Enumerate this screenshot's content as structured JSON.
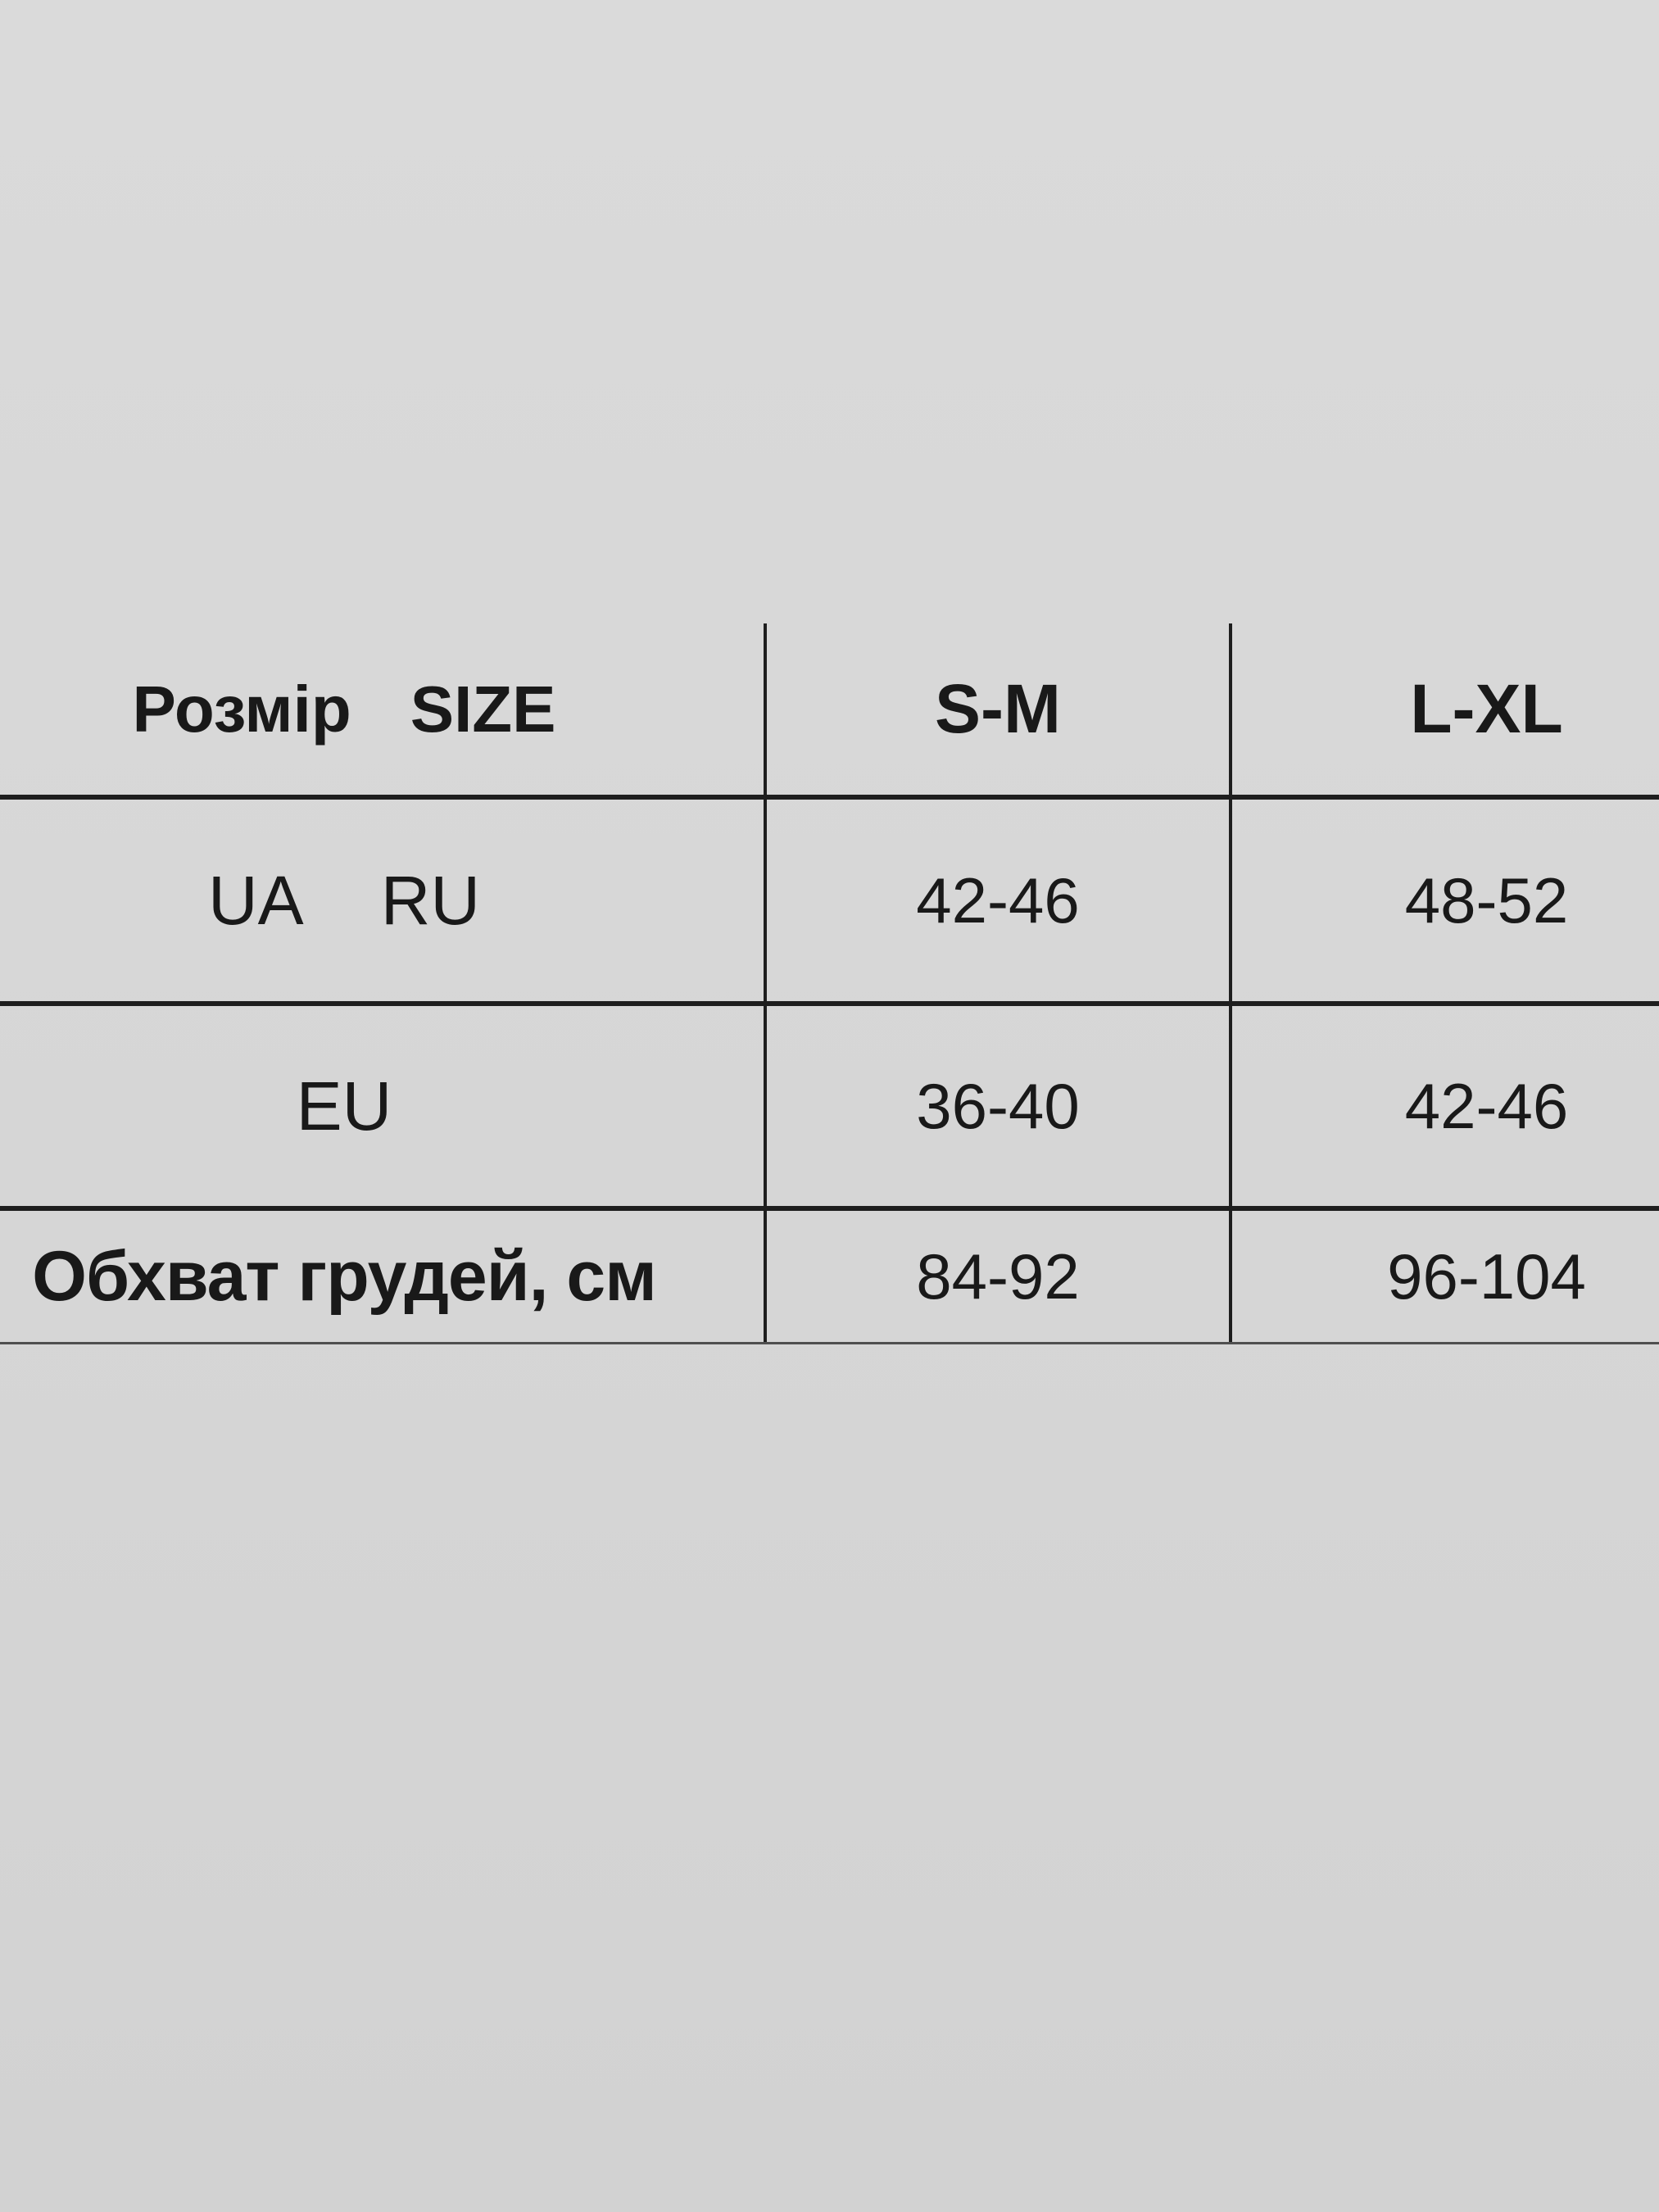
{
  "colors": {
    "background": "#d7d7d7",
    "grid_line": "#1e1e1e",
    "bottom_line": "#4f4f4f",
    "text": "#191919"
  },
  "table": {
    "header": {
      "col1_part1": "Розмір",
      "col1_part2": "SIZE",
      "col2": "S-M",
      "col3": "L-XL"
    },
    "rows": [
      {
        "label_part1": "UA",
        "label_part2": "RU",
        "col2": "42-46",
        "col3": "48-52"
      },
      {
        "label_part1": "EU",
        "col2": "36-40",
        "col3": "42-46"
      },
      {
        "label_part1": "Обхват грудей, см",
        "col2": "84-92",
        "col3": "96-104"
      }
    ]
  }
}
